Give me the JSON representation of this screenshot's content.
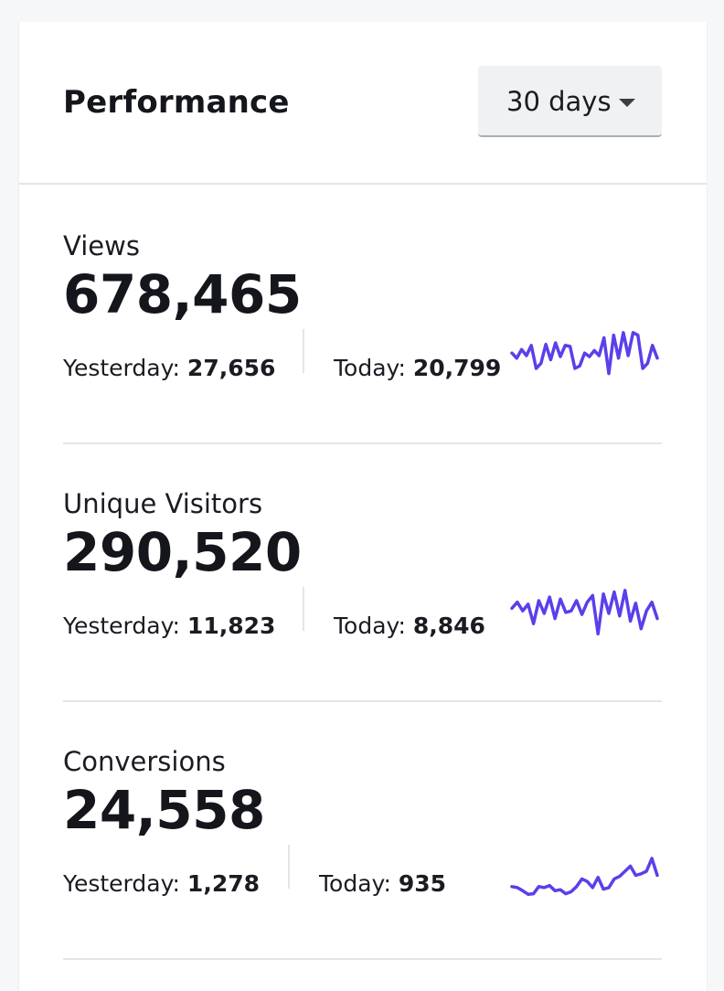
{
  "header": {
    "title": "Performance",
    "range_select": {
      "value": "30 days",
      "icon": "caret-down-icon"
    }
  },
  "accent_color": "#5b3fea",
  "metrics": [
    {
      "label": "Views",
      "value": "678,465",
      "yesterday_label": "Yesterday:",
      "yesterday_value": "27,656",
      "today_label": "Today:",
      "today_value": "20,799",
      "sparkline": [
        0.55,
        0.45,
        0.62,
        0.5,
        0.7,
        0.25,
        0.35,
        0.72,
        0.42,
        0.75,
        0.48,
        0.7,
        0.68,
        0.25,
        0.3,
        0.55,
        0.48,
        0.6,
        0.5,
        0.85,
        0.15,
        0.9,
        0.45,
        0.95,
        0.5,
        0.95,
        0.9,
        0.25,
        0.35,
        0.7,
        0.45
      ]
    },
    {
      "label": "Unique Visitors",
      "value": "290,520",
      "yesterday_label": "Yesterday:",
      "yesterday_value": "11,823",
      "today_label": "Today:",
      "today_value": "8,846",
      "sparkline": [
        0.6,
        0.72,
        0.55,
        0.68,
        0.3,
        0.75,
        0.5,
        0.82,
        0.4,
        0.78,
        0.52,
        0.55,
        0.75,
        0.48,
        0.72,
        0.85,
        0.1,
        0.88,
        0.5,
        0.92,
        0.45,
        0.95,
        0.35,
        0.7,
        0.2,
        0.55,
        0.72,
        0.4
      ]
    },
    {
      "label": "Conversions",
      "value": "24,558",
      "yesterday_label": "Yesterday:",
      "yesterday_value": "1,278",
      "today_label": "Today:",
      "today_value": "935",
      "sparkline": [
        0.2,
        0.18,
        0.12,
        0.05,
        0.06,
        0.2,
        0.18,
        0.22,
        0.12,
        0.14,
        0.06,
        0.1,
        0.2,
        0.35,
        0.3,
        0.18,
        0.38,
        0.15,
        0.18,
        0.35,
        0.4,
        0.5,
        0.6,
        0.42,
        0.45,
        0.5,
        0.75,
        0.42
      ]
    }
  ]
}
